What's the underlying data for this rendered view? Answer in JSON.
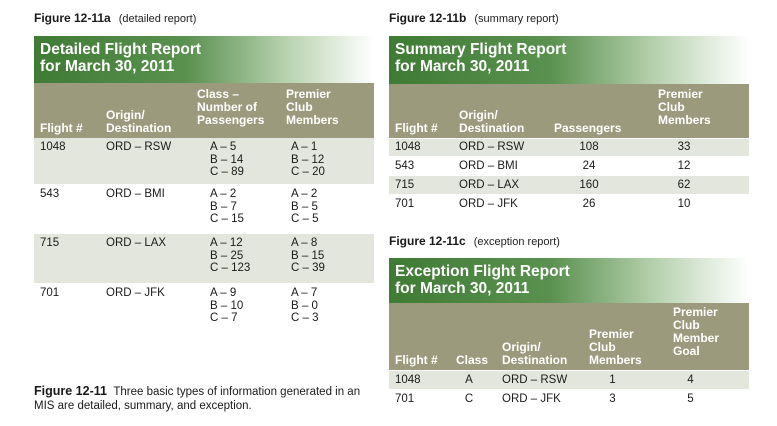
{
  "caption": {
    "figure": "Figure 12-11",
    "text": "Three basic types of information generated in an MIS are detailed, summary, and exception."
  },
  "detailed": {
    "figure": "Figure 12-11a",
    "subtitle": "(detailed report)",
    "title_line1": "Detailed Flight Report",
    "title_line2": "for March 30, 2011",
    "headers": {
      "flight": "Flight #",
      "origin": "Origin/\nDestination",
      "class": "Class –\nNumber of\nPassengers",
      "premier": "Premier\nClub\nMembers"
    },
    "rows": [
      {
        "flight": "1048",
        "route": "ORD – RSW",
        "classes": "A – 5\nB – 14\nC – 89",
        "premier": "A – 1\nB – 12\nC – 20"
      },
      {
        "flight": "543",
        "route": "ORD – BMI",
        "classes": "A – 2\nB – 7\nC – 15",
        "premier": "A – 2\nB – 5\nC – 5"
      },
      {
        "flight": "715",
        "route": "ORD – LAX",
        "classes": "A – 12\nB – 25\nC – 123",
        "premier": "A – 8\nB – 15\nC – 39"
      },
      {
        "flight": "701",
        "route": "ORD – JFK",
        "classes": "A – 9\nB – 10\nC – 7",
        "premier": "A – 7\nB – 0\nC – 3"
      }
    ]
  },
  "summary": {
    "figure": "Figure 12-11b",
    "subtitle": "(summary report)",
    "title_line1": "Summary Flight Report",
    "title_line2": "for March 30, 2011",
    "headers": {
      "flight": "Flight #",
      "origin": "Origin/\nDestination",
      "passengers": "Passengers",
      "premier": "Premier\nClub\nMembers"
    },
    "rows": [
      {
        "flight": "1048",
        "route": "ORD – RSW",
        "passengers": "108",
        "premier": "33"
      },
      {
        "flight": "543",
        "route": "ORD – BMI",
        "passengers": "24",
        "premier": "12"
      },
      {
        "flight": "715",
        "route": "ORD – LAX",
        "passengers": "160",
        "premier": "62"
      },
      {
        "flight": "701",
        "route": "ORD – JFK",
        "passengers": "26",
        "premier": "10"
      }
    ]
  },
  "exception": {
    "figure": "Figure 12-11c",
    "subtitle": "(exception report)",
    "title_line1": "Exception Flight Report",
    "title_line2": "for March 30, 2011",
    "headers": {
      "flight": "Flight #",
      "class": "Class",
      "origin": "Origin/\nDestination",
      "premier": "Premier\nClub\nMembers",
      "goal": "Premier\nClub\nMember\nGoal"
    },
    "rows": [
      {
        "flight": "1048",
        "class": "A",
        "route": "ORD – RSW",
        "premier": "1",
        "goal": "4"
      },
      {
        "flight": "701",
        "class": "C",
        "route": "ORD – JFK",
        "premier": "3",
        "goal": "5"
      }
    ]
  },
  "colors": {
    "banner_green": "#3f7b35",
    "header_olive": "#9b9a7d",
    "row_shade": "#e3e6dc"
  }
}
